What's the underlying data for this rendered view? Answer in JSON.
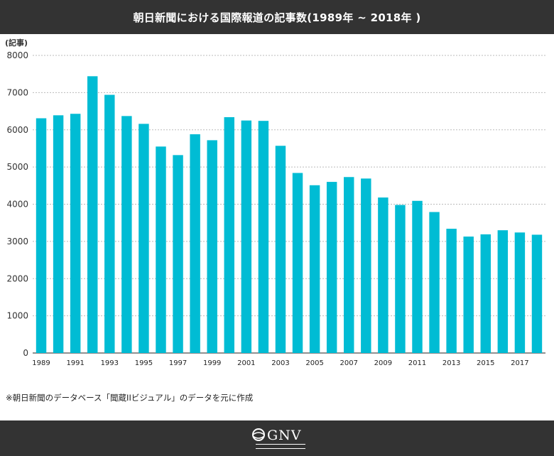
{
  "header": {
    "title": "朝日新聞における国際報道の記事数(1989年 ~ 2018年 )"
  },
  "unit_label": "(記事)",
  "source_note": "※朝日新聞のデータベース「聞蔵IIビジュアル」のデータを元に作成",
  "footer": {
    "logo_text": "GNV"
  },
  "colors": {
    "bar": "#00bcd4",
    "header_bg": "#333333",
    "grid": "#bbbbbb",
    "axis": "#222222"
  },
  "chart_data": {
    "type": "bar",
    "title": "朝日新聞における国際報道の記事数(1989年 ~ 2018年 )",
    "ylabel": "(記事)",
    "xlabel": "",
    "ylim": [
      0,
      8000
    ],
    "yticks": [
      0,
      1000,
      2000,
      3000,
      4000,
      5000,
      6000,
      7000,
      8000
    ],
    "grid": "horizontal dashed",
    "categories": [
      "1989",
      "1990",
      "1991",
      "1992",
      "1993",
      "1994",
      "1995",
      "1996",
      "1997",
      "1998",
      "1999",
      "2000",
      "2001",
      "2002",
      "2003",
      "2004",
      "2005",
      "2006",
      "2007",
      "2008",
      "2009",
      "2010",
      "2011",
      "2012",
      "2013",
      "2014",
      "2015",
      "2016",
      "2017",
      "2018"
    ],
    "xtick_labels": [
      "1989",
      "",
      "1991",
      "",
      "1993",
      "",
      "1995",
      "",
      "1997",
      "",
      "1999",
      "",
      "2001",
      "",
      "2003",
      "",
      "2005",
      "",
      "2007",
      "",
      "2009",
      "",
      "2011",
      "",
      "2013",
      "",
      "2015",
      "",
      "2017",
      ""
    ],
    "values": [
      6310,
      6390,
      6430,
      7440,
      6940,
      6370,
      6160,
      5550,
      5320,
      5880,
      5720,
      6340,
      6250,
      6240,
      5570,
      4840,
      4510,
      4600,
      4730,
      4690,
      4180,
      3980,
      4090,
      3790,
      3340,
      3130,
      3190,
      3300,
      3240,
      3180
    ]
  }
}
